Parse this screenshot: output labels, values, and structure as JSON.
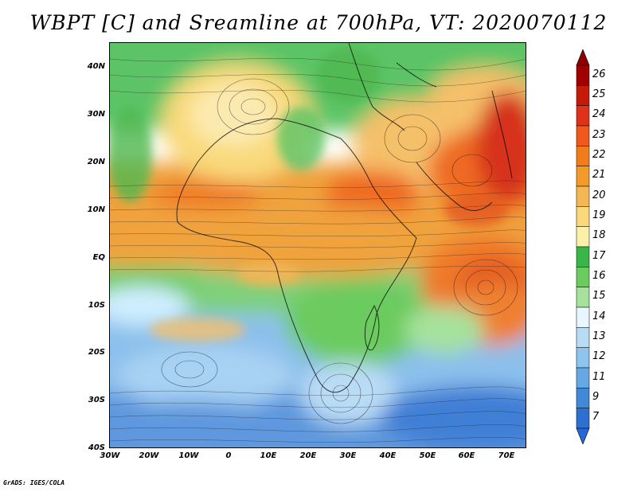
{
  "title": "WBPT [C] and Sreamline at 700hPa, VT: 2020070112",
  "credit": "GrADS: IGES/COLA",
  "map": {
    "variable": "Wet-bulb potential temperature",
    "units": "C",
    "level": "700hPa",
    "valid_time": "2020070112",
    "lat_labels": [
      "40N",
      "30N",
      "20N",
      "10N",
      "EQ",
      "10S",
      "20S",
      "30S",
      "40S"
    ],
    "lon_labels": [
      "30W",
      "20W",
      "10W",
      "0",
      "10E",
      "20E",
      "30E",
      "40E",
      "50E",
      "60E",
      "70E"
    ]
  },
  "colorbar": {
    "levels": [
      "26",
      "25",
      "24",
      "23",
      "22",
      "21",
      "20",
      "19",
      "18",
      "17",
      "16",
      "15",
      "14",
      "13",
      "12",
      "11",
      "9",
      "7"
    ],
    "colors": [
      "#a00000",
      "#c41a0a",
      "#e0321a",
      "#ef5a1c",
      "#f07c1c",
      "#f29a2a",
      "#f5b654",
      "#f9d97a",
      "#fbf0a8",
      "#39b54a",
      "#6ccb5f",
      "#a6e29c",
      "#e6f7ff",
      "#b9dcf5",
      "#8fc4ee",
      "#65a8e4",
      "#4189d8",
      "#2f6fd0"
    ],
    "cap_top": "#8b0000",
    "cap_bottom": "#2569d8"
  }
}
